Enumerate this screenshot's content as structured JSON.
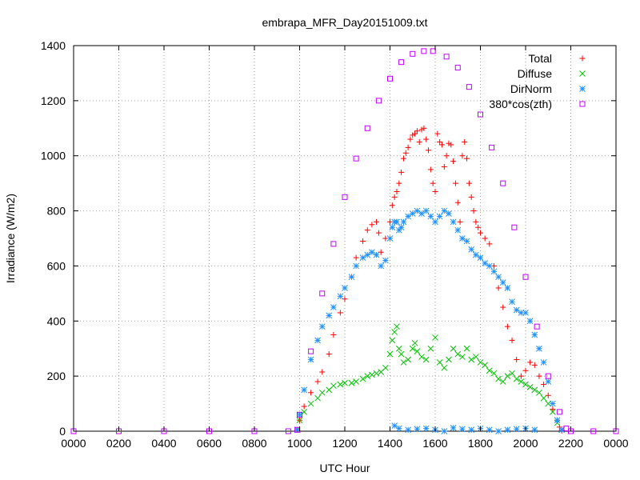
{
  "chart_data": {
    "type": "scatter",
    "title": "embrapa_MFR_Day20151009.txt",
    "xlabel": "UTC Hour",
    "ylabel": "Irradiance (W/m2)",
    "xlim": [
      0,
      24
    ],
    "ylim": [
      0,
      1400
    ],
    "x_ticks": [
      "0000",
      "0200",
      "0400",
      "0600",
      "0800",
      "1000",
      "1200",
      "1400",
      "1600",
      "1800",
      "2000",
      "2200",
      "0000"
    ],
    "y_ticks": [
      "0",
      "200",
      "400",
      "600",
      "800",
      "1000",
      "1200",
      "1400"
    ],
    "grid": true,
    "legend_position": "top-right",
    "series": [
      {
        "name": "Total",
        "marker": "plus",
        "color": "#ff0000",
        "x": [
          9.9,
          10.0,
          10.2,
          10.5,
          10.8,
          11.0,
          11.3,
          11.5,
          11.8,
          12.0,
          12.3,
          12.5,
          12.8,
          13.0,
          13.2,
          13.4,
          13.5,
          13.6,
          13.8,
          14.0,
          14.1,
          14.2,
          14.3,
          14.4,
          14.5,
          14.6,
          14.7,
          14.8,
          14.9,
          15.0,
          15.1,
          15.2,
          15.3,
          15.4,
          15.5,
          15.6,
          15.7,
          15.8,
          15.9,
          16.0,
          16.1,
          16.2,
          16.3,
          16.4,
          16.5,
          16.6,
          16.7,
          16.8,
          16.9,
          17.0,
          17.1,
          17.2,
          17.3,
          17.4,
          17.5,
          17.6,
          17.7,
          17.8,
          17.9,
          18.0,
          18.2,
          18.4,
          18.6,
          18.8,
          19.0,
          19.2,
          19.4,
          19.6,
          19.8,
          20.0,
          20.2,
          20.4,
          20.6,
          20.8,
          21.0,
          21.2,
          21.4,
          21.5,
          21.6
        ],
        "y": [
          5,
          40,
          90,
          140,
          180,
          215,
          280,
          350,
          430,
          480,
          560,
          630,
          690,
          730,
          750,
          760,
          720,
          650,
          700,
          760,
          820,
          850,
          870,
          900,
          940,
          990,
          1010,
          1030,
          1060,
          1075,
          1080,
          1090,
          1050,
          1095,
          1100,
          1060,
          1020,
          950,
          900,
          870,
          1080,
          1050,
          1040,
          960,
          1000,
          1045,
          1040,
          980,
          900,
          830,
          760,
          1000,
          1050,
          990,
          900,
          850,
          800,
          760,
          740,
          720,
          700,
          680,
          600,
          520,
          450,
          380,
          330,
          260,
          200,
          220,
          250,
          240,
          200,
          170,
          130,
          80,
          40,
          15,
          2
        ]
      },
      {
        "name": "Diffuse",
        "marker": "cross",
        "color": "#00c000",
        "x": [
          9.9,
          10.0,
          10.2,
          10.5,
          10.8,
          11.0,
          11.3,
          11.5,
          11.8,
          12.0,
          12.3,
          12.5,
          12.8,
          13.0,
          13.2,
          13.4,
          13.6,
          13.8,
          14.0,
          14.1,
          14.2,
          14.3,
          14.4,
          14.5,
          14.6,
          14.8,
          15.0,
          15.1,
          15.2,
          15.4,
          15.6,
          15.8,
          16.0,
          16.2,
          16.4,
          16.6,
          16.8,
          17.0,
          17.2,
          17.4,
          17.6,
          17.8,
          18.0,
          18.2,
          18.4,
          18.6,
          18.8,
          19.0,
          19.2,
          19.4,
          19.6,
          19.8,
          20.0,
          20.2,
          20.4,
          20.6,
          20.8,
          21.0,
          21.2,
          21.4,
          21.6
        ],
        "y": [
          5,
          40,
          70,
          100,
          120,
          140,
          150,
          165,
          170,
          175,
          175,
          180,
          190,
          200,
          205,
          210,
          215,
          230,
          280,
          330,
          360,
          380,
          300,
          280,
          250,
          260,
          300,
          320,
          290,
          270,
          260,
          300,
          340,
          250,
          230,
          260,
          300,
          280,
          270,
          300,
          260,
          270,
          250,
          240,
          220,
          210,
          190,
          180,
          200,
          210,
          190,
          180,
          170,
          160,
          150,
          140,
          120,
          100,
          70,
          30,
          5
        ]
      },
      {
        "name": "DirNorm",
        "marker": "star",
        "color": "#1e90ff",
        "x": [
          9.9,
          10.0,
          10.2,
          10.5,
          10.8,
          11.0,
          11.3,
          11.5,
          11.8,
          12.0,
          12.3,
          12.5,
          12.8,
          13.0,
          13.2,
          13.4,
          13.6,
          13.8,
          14.0,
          14.1,
          14.2,
          14.3,
          14.4,
          14.5,
          14.6,
          14.8,
          15.0,
          15.2,
          15.4,
          15.6,
          15.8,
          16.0,
          16.2,
          16.4,
          16.6,
          16.8,
          17.0,
          17.2,
          17.4,
          17.6,
          17.8,
          18.0,
          18.2,
          18.4,
          18.6,
          18.8,
          19.0,
          19.2,
          19.4,
          19.6,
          19.8,
          20.0,
          20.2,
          20.4,
          20.6,
          20.8,
          21.0,
          21.2,
          21.4,
          21.6,
          14.2,
          14.4,
          14.8,
          15.2,
          15.6,
          16.0,
          16.4,
          16.8,
          17.2,
          17.6,
          18.0,
          18.4,
          18.8,
          19.2,
          19.6,
          20.0,
          20.4
        ],
        "y": [
          5,
          60,
          150,
          260,
          330,
          380,
          420,
          450,
          490,
          520,
          560,
          600,
          630,
          640,
          650,
          640,
          600,
          620,
          700,
          740,
          760,
          760,
          730,
          740,
          760,
          780,
          790,
          800,
          790,
          800,
          780,
          760,
          780,
          800,
          790,
          760,
          730,
          700,
          690,
          660,
          640,
          630,
          610,
          600,
          580,
          560,
          540,
          520,
          470,
          440,
          430,
          430,
          400,
          350,
          300,
          250,
          180,
          100,
          40,
          5,
          20,
          10,
          5,
          8,
          10,
          5,
          0,
          12,
          8,
          5,
          10,
          5,
          0,
          5,
          8,
          10,
          5
        ]
      },
      {
        "name": "380*cos(zth)",
        "marker": "square",
        "color": "#c000ff",
        "x": [
          0,
          2,
          4,
          6,
          8,
          9.5,
          9.9,
          10.0,
          10.5,
          11.0,
          11.5,
          12.0,
          12.5,
          13.0,
          13.5,
          14.0,
          14.5,
          15.0,
          15.5,
          15.9,
          16.5,
          17.0,
          17.5,
          18.0,
          18.5,
          19.0,
          19.5,
          20.0,
          20.5,
          21.0,
          21.5,
          21.8,
          22.0,
          23.0,
          24.0
        ],
        "y": [
          0,
          0,
          0,
          0,
          0,
          0,
          5,
          60,
          290,
          500,
          680,
          850,
          990,
          1100,
          1200,
          1280,
          1340,
          1370,
          1380,
          1380,
          1360,
          1320,
          1250,
          1150,
          1030,
          900,
          740,
          560,
          380,
          200,
          70,
          10,
          0,
          0,
          0
        ]
      }
    ]
  }
}
